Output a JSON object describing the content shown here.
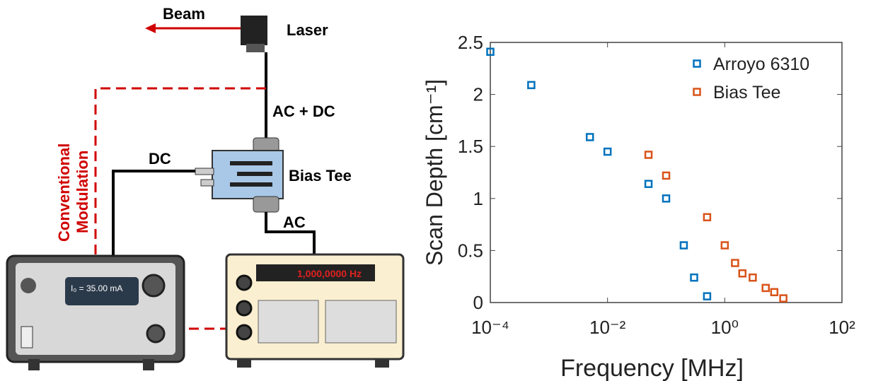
{
  "diagram": {
    "beam": "Beam",
    "laser": "Laser",
    "ac_dc": "AC + DC",
    "dc": "DC",
    "bias_tee": "Bias Tee",
    "ac": "AC",
    "modulation": [
      "Conventional",
      "Modulation"
    ],
    "generator_display": "1,000,0000 Hz",
    "controller_display": "I₀ = 35.00 mA"
  },
  "chart_data": {
    "type": "scatter",
    "xlabel": "Frequency [MHz]",
    "ylabel": "Scan Depth [cm⁻¹]",
    "xscale": "log",
    "xlim": [
      0.0001,
      100
    ],
    "ylim": [
      0,
      2.5
    ],
    "xticks": [
      {
        "value": 0.0001,
        "label": "10⁻⁴"
      },
      {
        "value": 0.01,
        "label": "10⁻²"
      },
      {
        "value": 1,
        "label": "10⁰"
      },
      {
        "value": 100,
        "label": "10²"
      }
    ],
    "yticks": [
      0,
      0.5,
      1,
      1.5,
      2,
      2.5
    ],
    "legend": "upper right",
    "series": [
      {
        "name": "Arroyo 6310",
        "color": "#0072bd",
        "x": [
          0.0001,
          0.0005,
          0.005,
          0.01,
          0.05,
          0.1,
          0.2,
          0.3,
          0.5
        ],
        "values": [
          2.41,
          2.09,
          1.59,
          1.45,
          1.14,
          1.0,
          0.55,
          0.24,
          0.06
        ]
      },
      {
        "name": "Bias Tee",
        "color": "#d95319",
        "x": [
          0.05,
          0.1,
          0.5,
          1,
          1.5,
          2,
          3,
          5,
          7,
          10
        ],
        "values": [
          1.42,
          1.22,
          0.82,
          0.55,
          0.38,
          0.28,
          0.24,
          0.14,
          0.1,
          0.04
        ]
      }
    ]
  }
}
